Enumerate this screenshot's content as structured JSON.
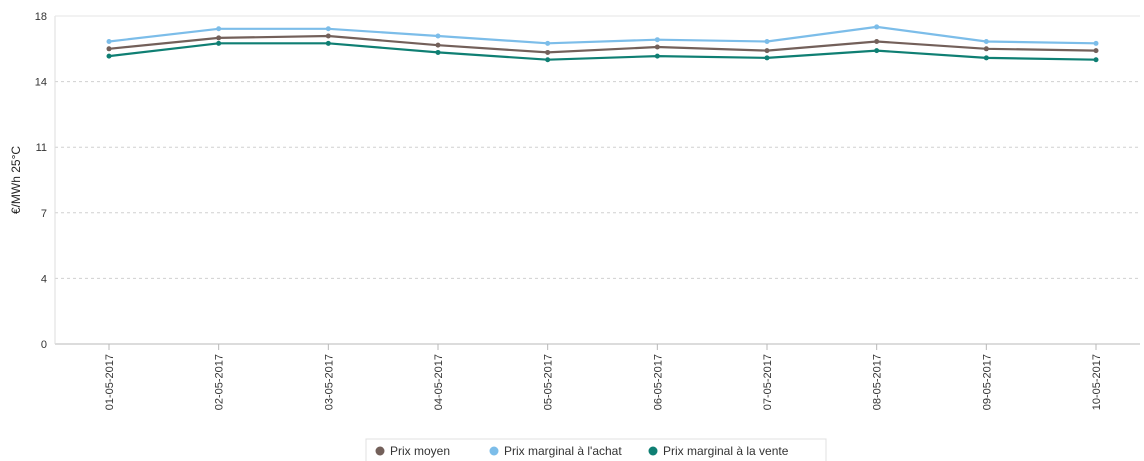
{
  "chart_data": {
    "type": "line",
    "ylabel": "€/MWh 25°C",
    "ylim": [
      0,
      18
    ],
    "yticks": [
      "0",
      "4",
      "7",
      "11",
      "14",
      "18"
    ],
    "ytick_values": [
      0,
      3.6,
      7.2,
      10.8,
      14.4,
      18
    ],
    "grid": true,
    "legend_position": "bottom",
    "x": [
      "01-05-2017",
      "02-05-2017",
      "03-05-2017",
      "04-05-2017",
      "05-05-2017",
      "06-05-2017",
      "07-05-2017",
      "08-05-2017",
      "09-05-2017",
      "10-05-2017"
    ],
    "series": [
      {
        "name": "Prix moyen",
        "color": "#73605a",
        "values": [
          16.2,
          16.8,
          16.9,
          16.4,
          16.0,
          16.3,
          16.1,
          16.6,
          16.2,
          16.1
        ]
      },
      {
        "name": "Prix marginal à l'achat",
        "color": "#7cbde9",
        "values": [
          16.6,
          17.3,
          17.3,
          16.9,
          16.5,
          16.7,
          16.6,
          17.4,
          16.6,
          16.5
        ]
      },
      {
        "name": "Prix marginal à la vente",
        "color": "#0f7f73",
        "values": [
          15.8,
          16.5,
          16.5,
          16.0,
          15.6,
          15.8,
          15.7,
          16.1,
          15.7,
          15.6
        ]
      }
    ]
  }
}
